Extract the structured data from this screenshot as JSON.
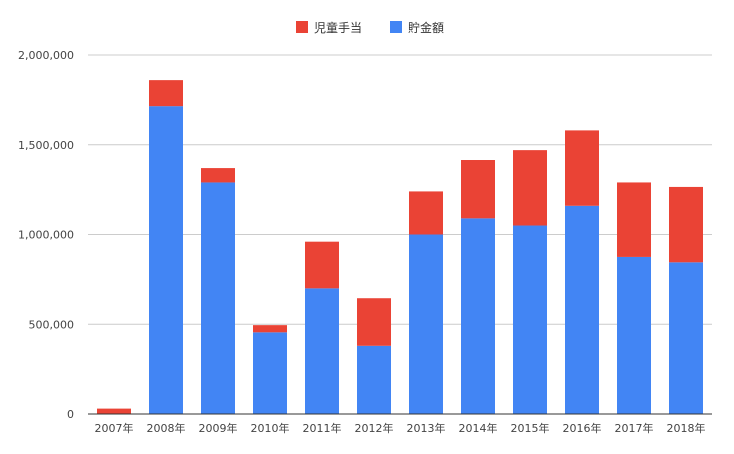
{
  "chart_data": {
    "type": "bar",
    "stacked": true,
    "categories": [
      "2007年",
      "2008年",
      "2009年",
      "2010年",
      "2011年",
      "2012年",
      "2013年",
      "2014年",
      "2015年",
      "2016年",
      "2017年",
      "2018年"
    ],
    "series": [
      {
        "name": "貯金額",
        "color": "#4285f4",
        "values": [
          0,
          1715000,
          1290000,
          455000,
          700000,
          380000,
          1000000,
          1090000,
          1050000,
          1160000,
          875000,
          845000
        ]
      },
      {
        "name": "児童手当",
        "color": "#ea4335",
        "values": [
          30000,
          145000,
          80000,
          40000,
          260000,
          265000,
          240000,
          325000,
          420000,
          420000,
          415000,
          420000
        ]
      }
    ],
    "legend_order": [
      "児童手当",
      "貯金額"
    ],
    "legend_position": "top",
    "ylim": [
      0,
      2000000
    ],
    "yticks": [
      0,
      500000,
      1000000,
      1500000,
      2000000
    ],
    "ytick_labels": [
      "0",
      "500,000",
      "1,000,000",
      "1,500,000",
      "2,000,000"
    ],
    "grid": true
  }
}
